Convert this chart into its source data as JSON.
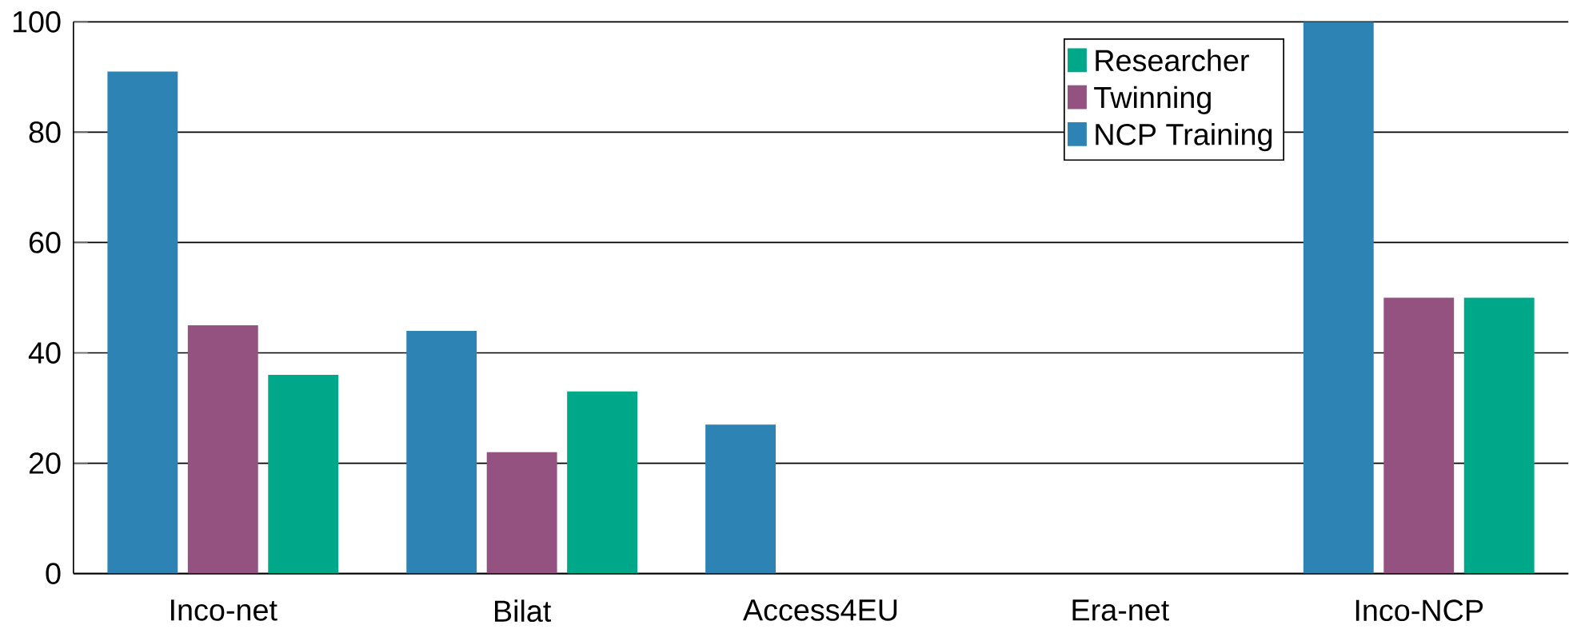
{
  "chart_data": {
    "type": "bar",
    "categories": [
      "Inco-net",
      "Bilat",
      "Access4EU",
      "Era-net",
      "Inco-NCP"
    ],
    "series": [
      {
        "name": "NCP Training",
        "color": "#2e83b5",
        "values": [
          91,
          44,
          27,
          0,
          100
        ]
      },
      {
        "name": "Twinning",
        "color": "#93527f",
        "values": [
          45,
          22,
          0,
          0,
          50
        ]
      },
      {
        "name": "Researcher",
        "color": "#00a88a",
        "values": [
          36,
          33,
          0,
          0,
          50
        ]
      }
    ],
    "ylim": [
      0,
      100
    ],
    "yticks": [
      0,
      20,
      40,
      60,
      80,
      100
    ],
    "grid": "y",
    "legend": "top right"
  }
}
